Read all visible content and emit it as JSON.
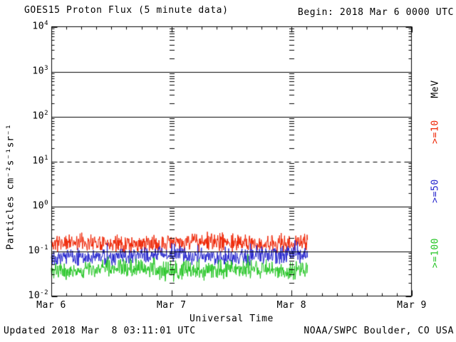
{
  "title": "GOES15 Proton Flux (5 minute data)",
  "begin_label": "Begin: 2018 Mar 6 0000 UTC",
  "footer": {
    "updated": "Updated 2018 Mar  8 03:11:01 UTC",
    "source": "NOAA/SWPC Boulder, CO USA"
  },
  "legend": {
    "position": "right",
    "items": [
      {
        "label": "MeV",
        "color": "#000000"
      },
      {
        "label": ">=10",
        "color": "#ee2200"
      },
      {
        "label": ">=50",
        "color": "#2222cc"
      },
      {
        "label": ">=100",
        "color": "#22c422"
      }
    ]
  },
  "colors": {
    "background": "#ffffff",
    "axis": "#000000",
    "text": "#000000"
  },
  "chart_data": {
    "type": "line",
    "title": "GOES15 Proton Flux (5 minute data)",
    "xlabel": "Universal Time",
    "ylabel": "Particles cm⁻²s⁻¹sr⁻¹",
    "x_axis": {
      "range_hours": [
        0,
        72
      ],
      "minor_tick_hours": 3,
      "ticks": [
        {
          "label": "Mar 6",
          "hour": 0
        },
        {
          "label": "Mar 7",
          "hour": 24
        },
        {
          "label": "Mar 8",
          "hour": 48
        },
        {
          "label": "Mar 9",
          "hour": 72
        }
      ]
    },
    "y_axis": {
      "scale": "log",
      "log_range": [
        -2,
        4
      ],
      "unit": "MeV",
      "ticks": [
        {
          "base": "10",
          "exp": "4",
          "exponent": 4
        },
        {
          "base": "10",
          "exp": "3",
          "exponent": 3
        },
        {
          "base": "10",
          "exp": "2",
          "exponent": 2
        },
        {
          "base": "10",
          "exp": "1",
          "exponent": 1
        },
        {
          "base": "10",
          "exp": "0",
          "exponent": 0
        },
        {
          "base": "10",
          "exp": "-1",
          "exponent": -1
        },
        {
          "base": "10",
          "exp": "-2",
          "exponent": -2
        }
      ]
    },
    "gridlines": {
      "solid_at_exponents": [
        3,
        2,
        0,
        -1
      ],
      "dashed_at_exponents": [
        1
      ],
      "day_boundary_tick_columns_hours": [
        24,
        48
      ]
    },
    "series": [
      {
        "name": ">=10 MeV",
        "color": "#ee2200",
        "cadence_minutes": 5,
        "start_hour": 0,
        "end_hour": 51.2,
        "log10_mean": -0.82,
        "log10_noise_amp": 0.22,
        "value_range_approx": [
          0.09,
          0.32
        ]
      },
      {
        "name": ">=50 MeV",
        "color": "#2222cc",
        "cadence_minutes": 5,
        "start_hour": 0,
        "end_hour": 51.2,
        "log10_mean": -1.12,
        "log10_noise_amp": 0.22,
        "value_range_approx": [
          0.04,
          0.17
        ]
      },
      {
        "name": ">=100 MeV",
        "color": "#22c422",
        "cadence_minutes": 5,
        "start_hour": 0,
        "end_hour": 51.2,
        "log10_mean": -1.42,
        "log10_noise_amp": 0.24,
        "value_range_approx": [
          0.02,
          0.09
        ]
      }
    ]
  }
}
